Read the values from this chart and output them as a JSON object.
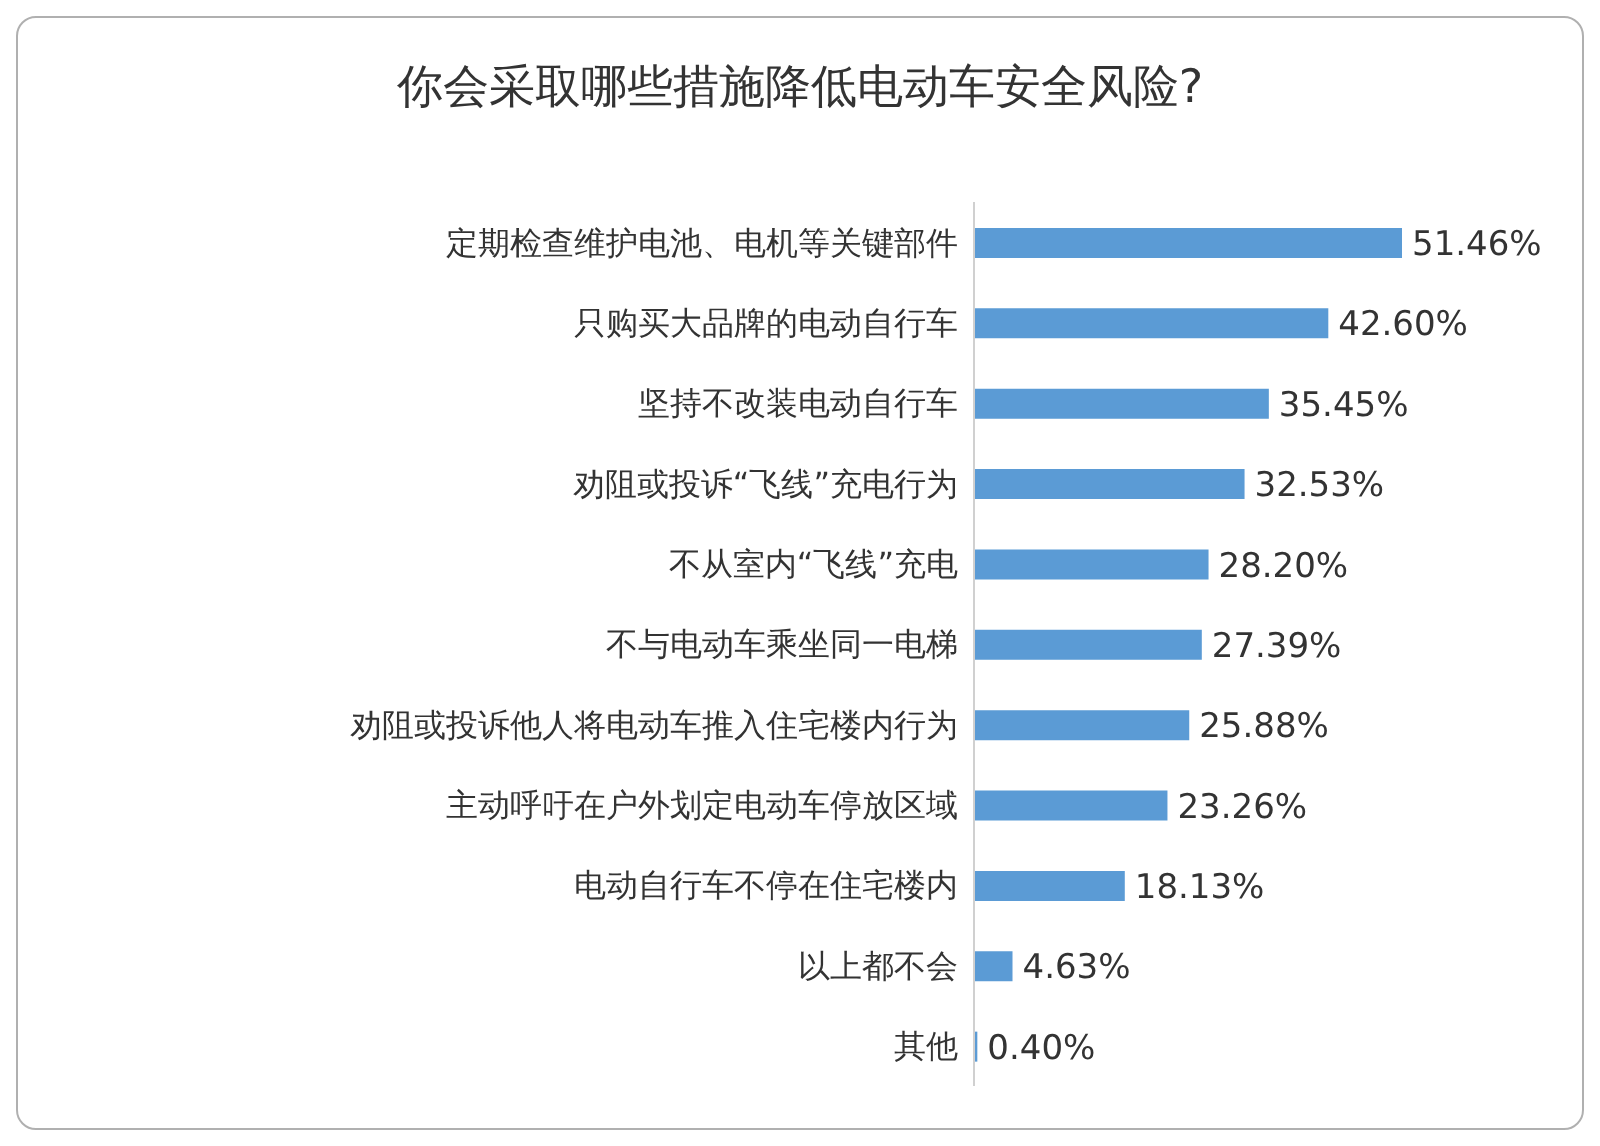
{
  "chart_data": {
    "type": "bar",
    "orientation": "horizontal",
    "title": "你会采取哪些措施降低电动车安全风险?",
    "categories": [
      "定期检查维护电池、电机等关键部件",
      "只购买大品牌的电动自行车",
      "坚持不改装电动自行车",
      "劝阻或投诉“飞线”充电行为",
      "不从室内“飞线”充电",
      "不与电动车乘坐同一电梯",
      "劝阻或投诉他人将电动车推入住宅楼内行为",
      "主动呼吁在户外划定电动车停放区域",
      "电动自行车不停在住宅楼内",
      "以上都不会",
      "其他"
    ],
    "values": [
      51.46,
      42.6,
      35.45,
      32.53,
      28.2,
      27.39,
      25.88,
      23.26,
      18.13,
      4.63,
      0.4
    ],
    "value_labels": [
      "51.46%",
      "42.60%",
      "35.45%",
      "32.53%",
      "28.20%",
      "27.39%",
      "25.88%",
      "23.26%",
      "18.13%",
      "4.63%",
      "0.40%"
    ],
    "color": "#5b9bd5",
    "tick_labels": "y"
  }
}
